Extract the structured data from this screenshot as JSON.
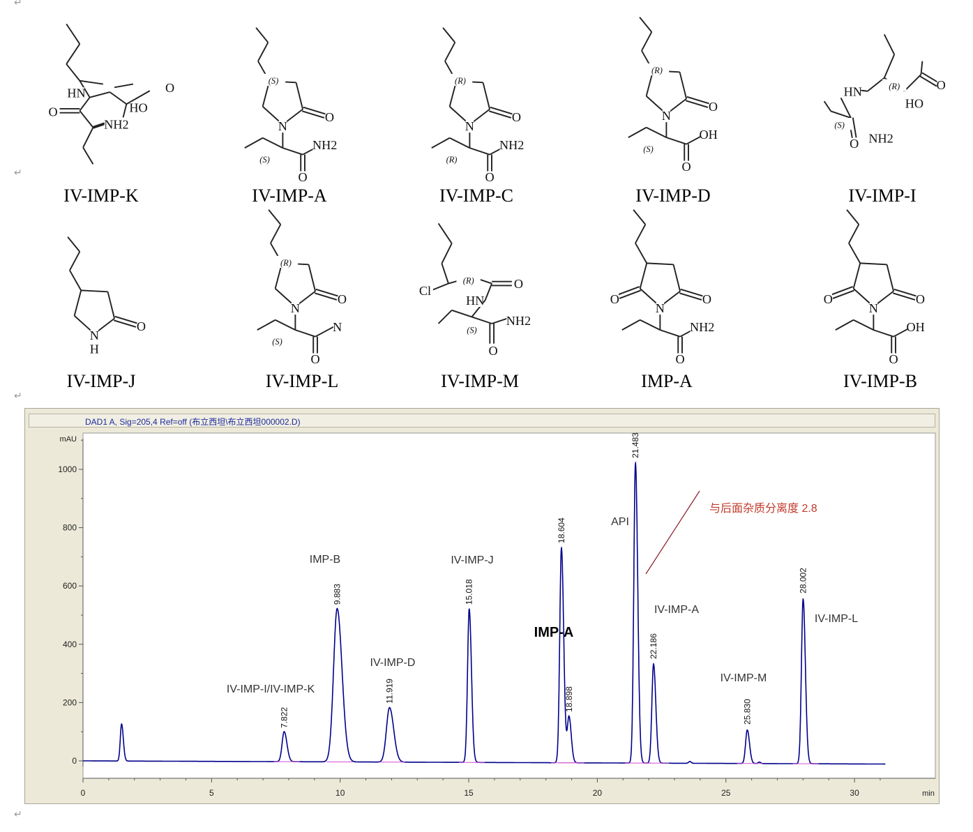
{
  "paragraph_mark": "↵",
  "structures": [
    {
      "name": "IV-IMP-K",
      "labels": [
        "HN",
        "O",
        "NH2",
        "HO",
        "O"
      ]
    },
    {
      "name": "IV-IMP-A",
      "labels": [
        "N",
        "O",
        "(S)",
        "(S)",
        "O",
        "NH2"
      ]
    },
    {
      "name": "IV-IMP-C",
      "labels": [
        "N",
        "O",
        "(R)",
        "(R)",
        "O",
        "NH2"
      ]
    },
    {
      "name": "IV-IMP-D",
      "labels": [
        "N",
        "O",
        "(R)",
        "(S)",
        "O",
        "OH"
      ]
    },
    {
      "name": "IV-IMP-I",
      "labels": [
        "HN",
        "(R)",
        "O",
        "HO",
        "(S)",
        "O",
        "NH2"
      ]
    },
    {
      "name": "IV-IMP-J",
      "labels": [
        "N",
        "H",
        "O"
      ]
    },
    {
      "name": "IV-IMP-L",
      "labels": [
        "N",
        "O",
        "(R)",
        "(S)",
        "O",
        "N"
      ]
    },
    {
      "name": "IV-IMP-M",
      "labels": [
        "Cl",
        "(R)",
        "O",
        "HN",
        "(S)",
        "O",
        "NH2"
      ]
    },
    {
      "name": "IMP-A",
      "labels": [
        "N",
        "O",
        "O",
        "O",
        "NH2"
      ]
    },
    {
      "name": "IV-IMP-B",
      "labels": [
        "N",
        "O",
        "O",
        "O",
        "OH"
      ]
    }
  ],
  "chart_data": {
    "type": "line",
    "title": "DAD1 A, Sig=205,4 Ref=off (布立西坦\\布立西坦000002.D)",
    "xlabel": "min",
    "ylabel": "mAU",
    "xlim": [
      0,
      31.2
    ],
    "ylim": [
      -20,
      1105
    ],
    "x_ticks": [
      "0",
      "5",
      "10",
      "15",
      "20",
      "25",
      "30"
    ],
    "y_ticks": [
      "0",
      "200",
      "400",
      "600",
      "800",
      "1000"
    ],
    "grid": false,
    "trace_color": "#00008b",
    "peaks": [
      {
        "rt": 1.5,
        "height": 127,
        "label": "",
        "name": ""
      },
      {
        "rt": 7.822,
        "height": 103,
        "label": "7.822",
        "name": "IV-IMP-I/IV-IMP-K"
      },
      {
        "rt": 9.883,
        "height": 526,
        "label": "9.883",
        "name": "IMP-B"
      },
      {
        "rt": 11.919,
        "height": 187,
        "label": "11.919",
        "name": "IV-IMP-D"
      },
      {
        "rt": 15.018,
        "height": 526,
        "label": "15.018",
        "name": "IV-IMP-J"
      },
      {
        "rt": 18.604,
        "height": 737,
        "label": "18.604",
        "name": "IMP-A"
      },
      {
        "rt": 18.898,
        "height": 158,
        "label": "18.898",
        "name": ""
      },
      {
        "rt": 21.483,
        "height": 1029,
        "label": "21.483",
        "name": "API"
      },
      {
        "rt": 22.186,
        "height": 340,
        "label": "22.186",
        "name": "IV-IMP-A"
      },
      {
        "rt": 25.83,
        "height": 115,
        "label": "25.830",
        "name": "IV-IMP-M"
      },
      {
        "rt": 28.002,
        "height": 565,
        "label": "28.002",
        "name": "IV-IMP-L"
      }
    ],
    "annotation": {
      "text": "与后面杂质分离度 2.8",
      "color": "#c0392b"
    }
  }
}
